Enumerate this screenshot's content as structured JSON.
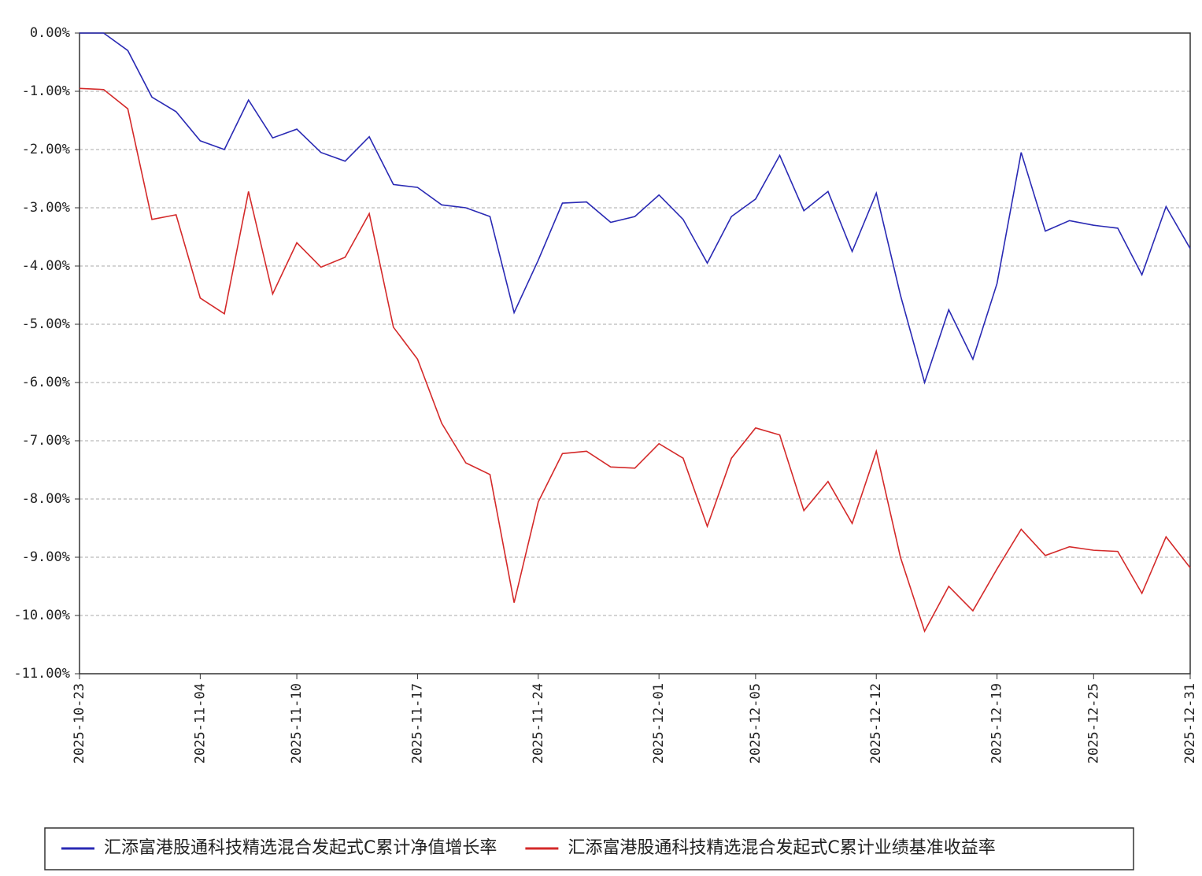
{
  "chart_data": {
    "type": "line",
    "categories": [
      "2025-10-23",
      null,
      null,
      null,
      null,
      "2025-11-04",
      null,
      null,
      null,
      "2025-11-10",
      null,
      null,
      null,
      null,
      "2025-11-17",
      null,
      null,
      null,
      null,
      "2025-11-24",
      null,
      null,
      null,
      null,
      "2025-12-01",
      null,
      null,
      null,
      "2025-12-05",
      null,
      null,
      null,
      null,
      "2025-12-12",
      null,
      null,
      null,
      null,
      "2025-12-19",
      null,
      null,
      null,
      "2025-12-25",
      null,
      null,
      null,
      "2025-12-31"
    ],
    "series": [
      {
        "name": "汇添富港股通科技精选混合发起式C累计净值增长率",
        "color": "#2a2ab4",
        "values": [
          0,
          0,
          -0.3,
          -1.1,
          -1.35,
          -1.85,
          -2.0,
          -1.15,
          -1.8,
          -1.65,
          -2.05,
          -2.2,
          -1.78,
          -2.6,
          -2.65,
          -2.95,
          -3.0,
          -3.15,
          -4.8,
          -3.9,
          -2.92,
          -2.9,
          -3.25,
          -3.15,
          -2.78,
          -3.2,
          -3.95,
          -3.15,
          -2.85,
          -2.1,
          -3.05,
          -2.72,
          -3.75,
          -2.75,
          -4.5,
          -6.0,
          -4.75,
          -5.6,
          -4.3,
          -2.05,
          -3.4,
          -3.22,
          -3.3,
          -3.35,
          -4.15,
          -2.98,
          -3.7
        ]
      },
      {
        "name": "汇添富港股通科技精选混合发起式C累计业绩基准收益率",
        "color": "#d42a2a",
        "values": [
          -0.95,
          -0.97,
          -1.3,
          -3.2,
          -3.12,
          -4.55,
          -4.82,
          -2.72,
          -4.48,
          -3.6,
          -4.02,
          -3.85,
          -3.1,
          -5.05,
          -5.6,
          -6.7,
          -7.38,
          -7.58,
          -9.78,
          -8.05,
          -7.22,
          -7.18,
          -7.45,
          -7.47,
          -7.05,
          -7.3,
          -8.47,
          -7.3,
          -6.78,
          -6.9,
          -8.2,
          -7.7,
          -8.42,
          -7.18,
          -9.0,
          -10.27,
          -9.5,
          -9.92,
          -9.2,
          -8.52,
          -8.97,
          -8.82,
          -8.88,
          -8.9,
          -9.62,
          -8.65,
          -9.18
        ]
      }
    ],
    "ylim": [
      -11,
      0
    ],
    "yticks": [
      {
        "value": 0,
        "label": "0.00%"
      },
      {
        "value": -1,
        "label": "-1.00%"
      },
      {
        "value": -2,
        "label": "-2.00%"
      },
      {
        "value": -3,
        "label": "-3.00%"
      },
      {
        "value": -4,
        "label": "-4.00%"
      },
      {
        "value": -5,
        "label": "-5.00%"
      },
      {
        "value": -6,
        "label": "-6.00%"
      },
      {
        "value": -7,
        "label": "-7.00%"
      },
      {
        "value": -8,
        "label": "-8.00%"
      },
      {
        "value": -9,
        "label": "-9.00%"
      },
      {
        "value": -10,
        "label": "-10.00%"
      },
      {
        "value": -11,
        "label": "-11.00%"
      }
    ],
    "grid": true,
    "legend": "bottom"
  }
}
